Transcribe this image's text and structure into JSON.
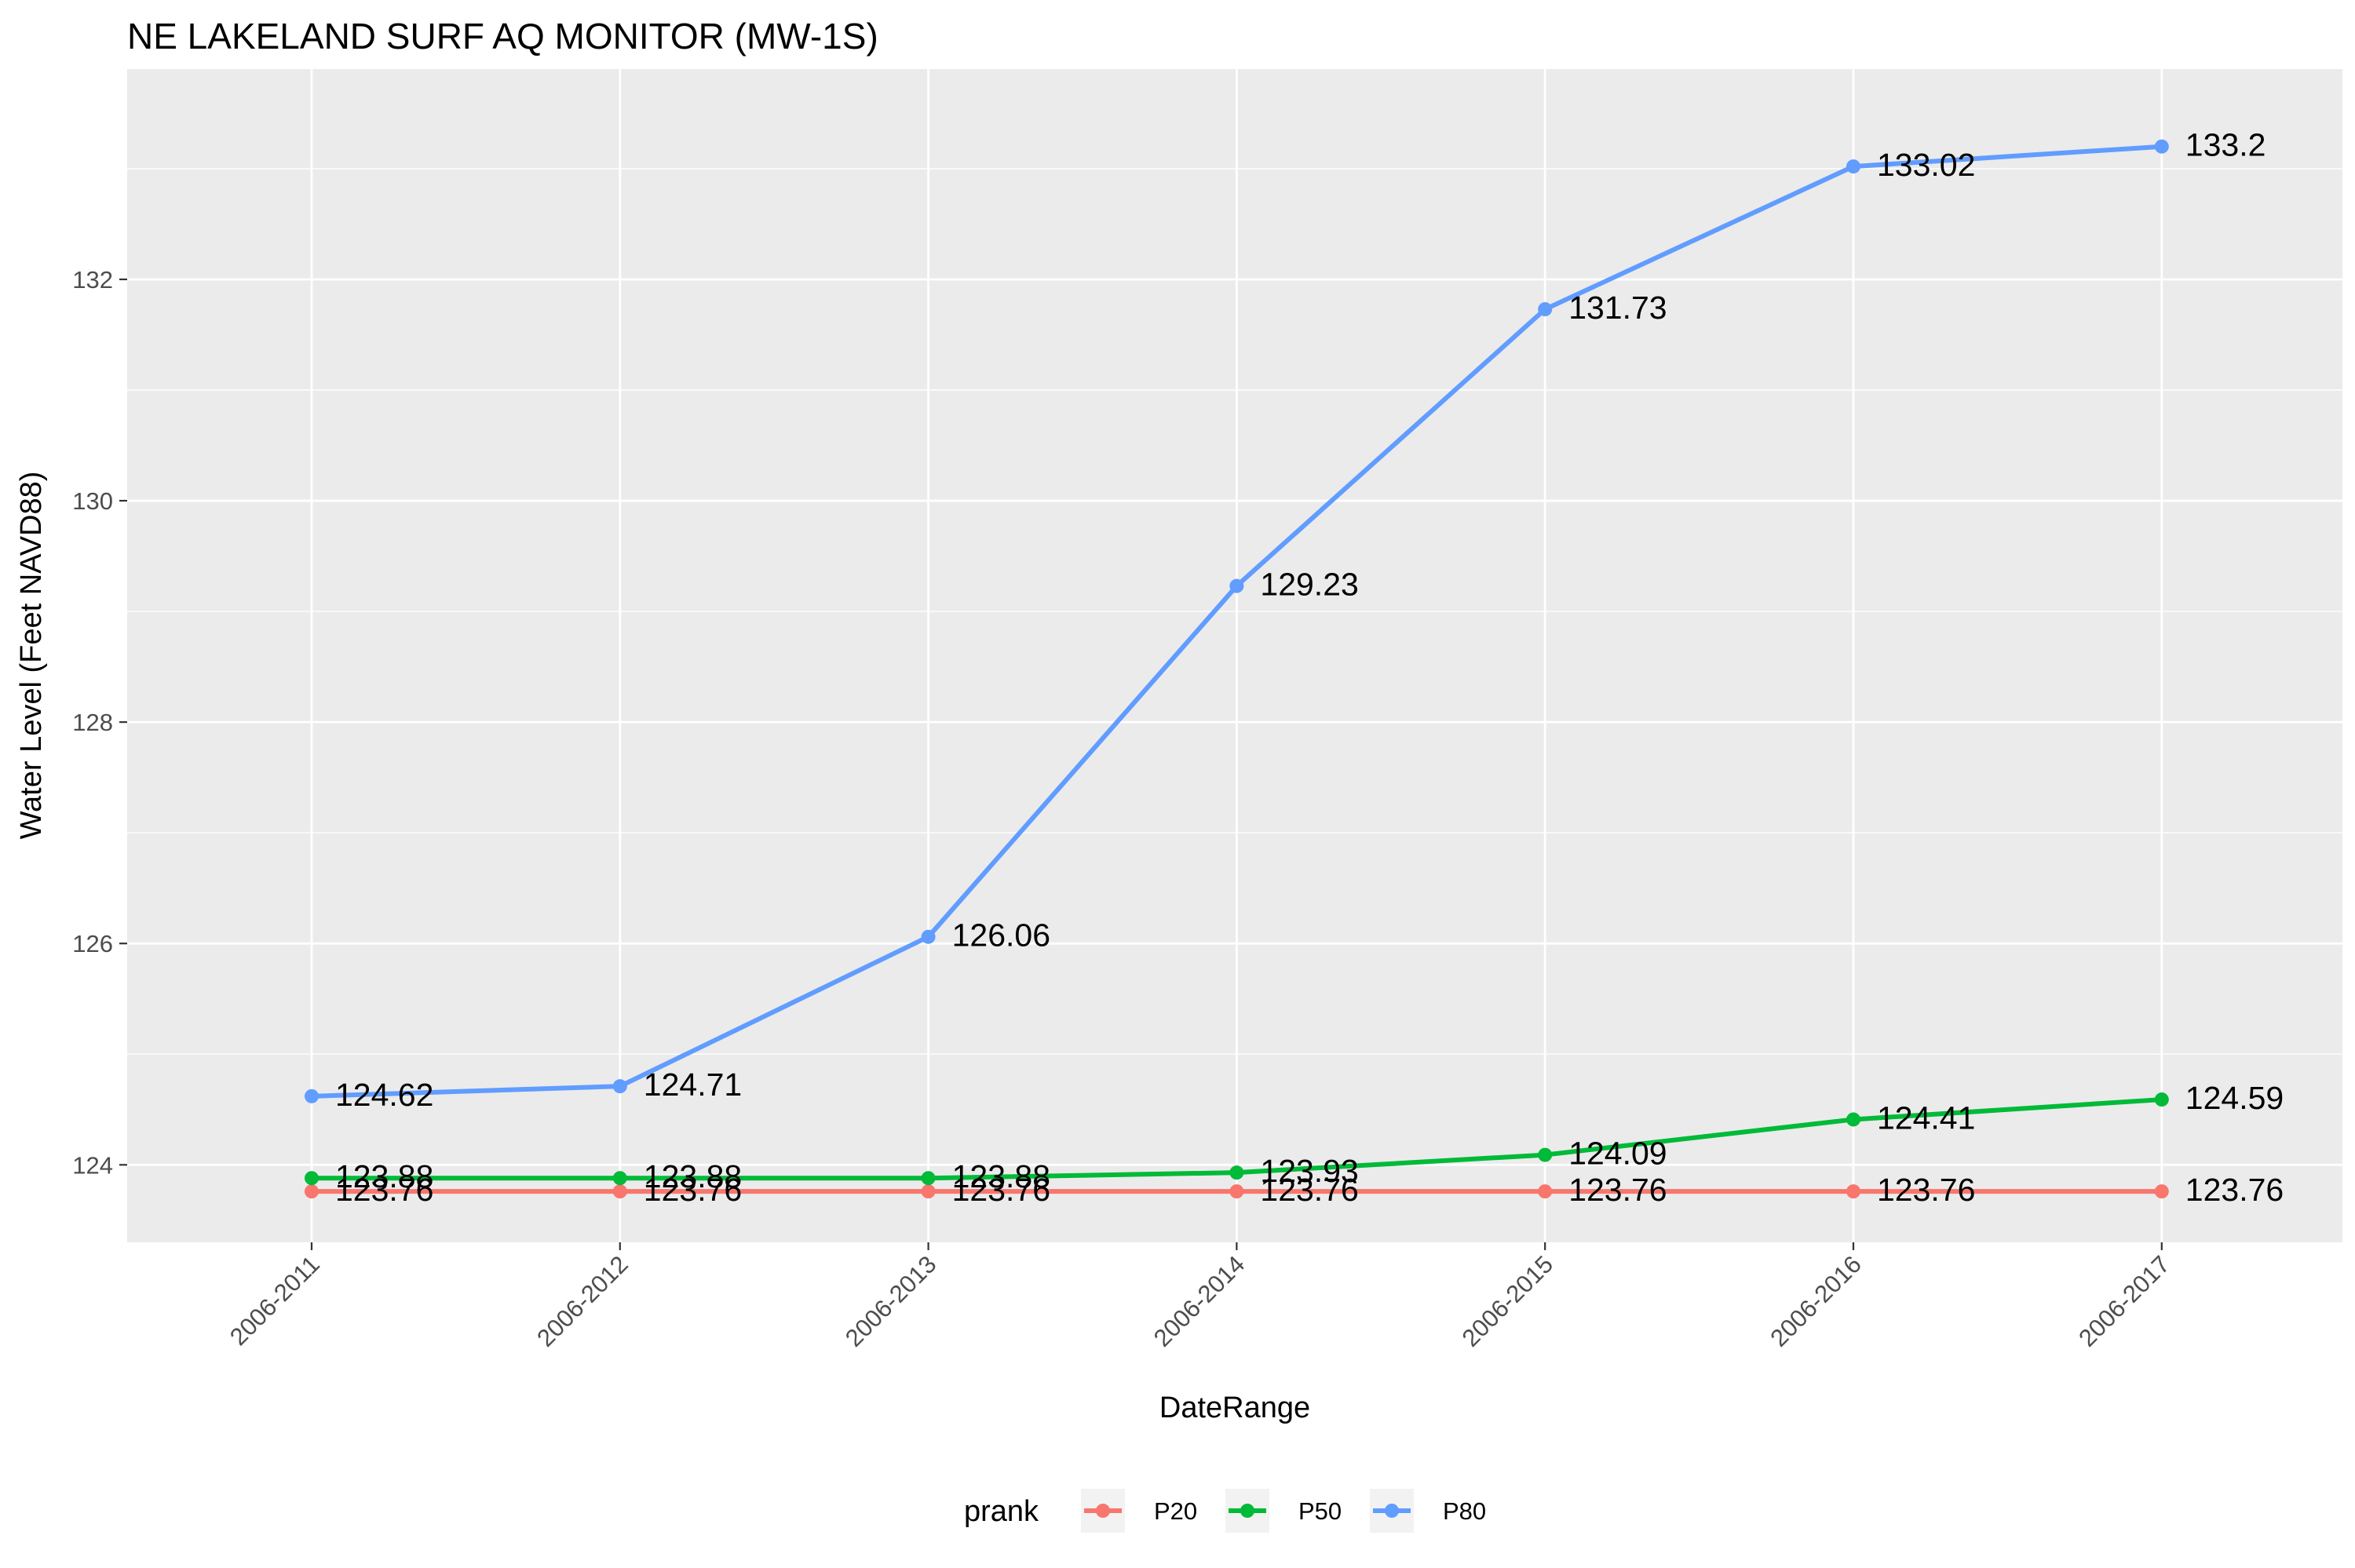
{
  "chart_data": {
    "type": "line",
    "title": "NE LAKELAND SURF AQ MONITOR (MW-1S)",
    "xlabel": "DateRange",
    "ylabel": "Water Level (Feet NAVD88)",
    "categories": [
      "2006-2011",
      "2006-2012",
      "2006-2013",
      "2006-2014",
      "2006-2015",
      "2006-2016",
      "2006-2017"
    ],
    "y_ticks": [
      124,
      126,
      128,
      130,
      132
    ],
    "ylim": [
      123.3,
      133.9
    ],
    "grid": true,
    "legend": {
      "title": "prank",
      "position": "bottom"
    },
    "series": [
      {
        "name": "P20",
        "color": "#F8766D",
        "values": [
          123.76,
          123.76,
          123.76,
          123.76,
          123.76,
          123.76,
          123.76
        ],
        "labels": [
          "123.76",
          "123.76",
          "123.76",
          "123.76",
          "123.76",
          "123.76",
          "123.76"
        ]
      },
      {
        "name": "P50",
        "color": "#00BA38",
        "values": [
          123.88,
          123.88,
          123.88,
          123.93,
          124.09,
          124.41,
          124.59
        ],
        "labels": [
          "123.88",
          "123.88",
          "123.88",
          "123.93",
          "124.09",
          "124.41",
          "124.59"
        ]
      },
      {
        "name": "P80",
        "color": "#619CFF",
        "values": [
          124.62,
          124.71,
          126.06,
          129.23,
          131.73,
          133.02,
          133.2
        ],
        "labels": [
          "124.62",
          "124.71",
          "126.06",
          "129.23",
          "131.73",
          "133.02",
          "133.2"
        ]
      }
    ]
  }
}
